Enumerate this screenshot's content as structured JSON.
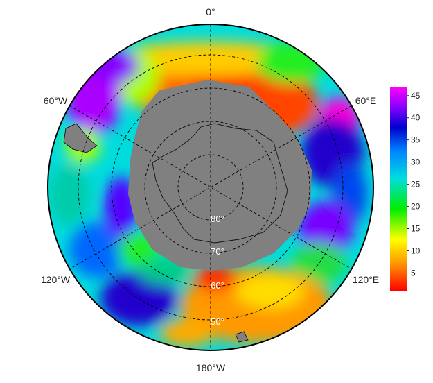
{
  "map": {
    "projection": "south-polar-stereographic",
    "longitude_labels": {
      "top": "0°",
      "upper_left": "60°W",
      "upper_right": "60°E",
      "lower_left": "120°W",
      "lower_right": "120°E",
      "bottom": "180°W"
    },
    "latitude_labels": [
      "80°",
      "70°",
      "60°",
      "50°"
    ],
    "land_color": "#808080",
    "grid_color": "#000000"
  },
  "colorbar": {
    "min": 1,
    "max": 47,
    "ticks": [
      "5",
      "10",
      "15",
      "20",
      "25",
      "30",
      "35",
      "40",
      "45"
    ],
    "colormap": [
      "#ff0000",
      "#ff8800",
      "#ffff00",
      "#00ee00",
      "#00dddd",
      "#0088ff",
      "#0000cc",
      "#8800ff",
      "#ff00ff"
    ]
  }
}
